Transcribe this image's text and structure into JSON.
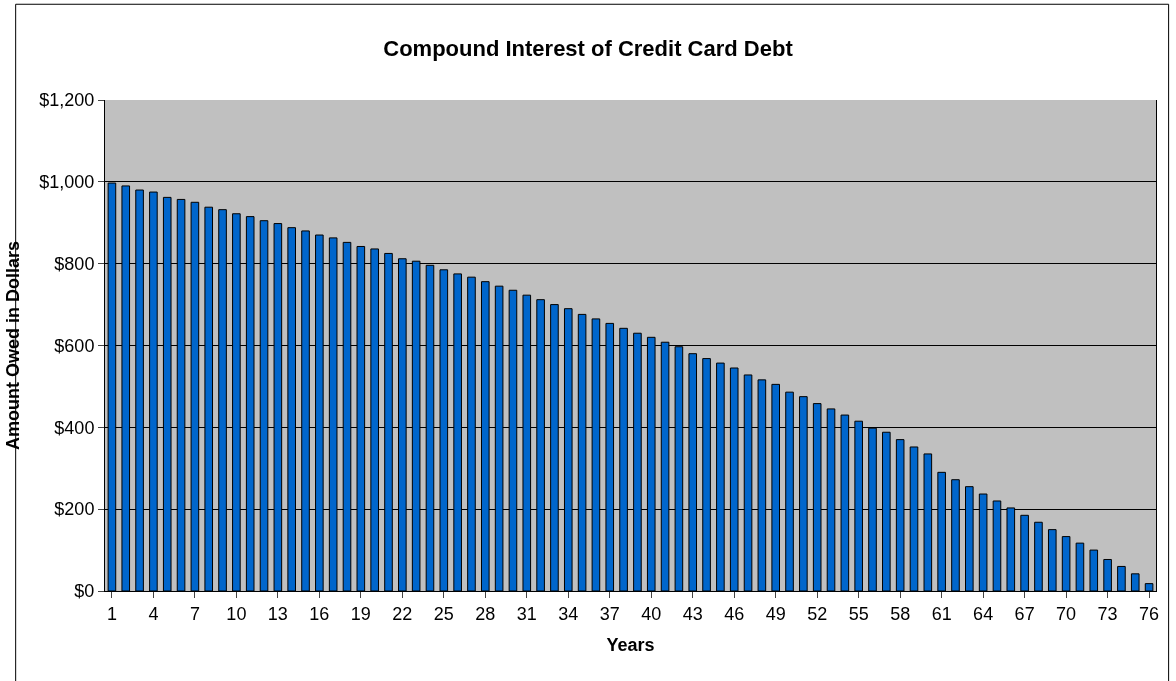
{
  "chart_data": {
    "type": "bar",
    "title": "Compound Interest of Credit Card Debt",
    "xlabel": "Years",
    "ylabel": "Amount Owed in Dollars",
    "categories": [
      "1",
      null,
      null,
      "4",
      null,
      null,
      "7",
      null,
      null,
      "10",
      null,
      null,
      "13",
      null,
      null,
      "16",
      null,
      null,
      "19",
      null,
      null,
      "22",
      null,
      null,
      "25",
      null,
      null,
      "28",
      null,
      null,
      "31",
      null,
      null,
      "34",
      null,
      null,
      "37",
      null,
      null,
      "40",
      null,
      null,
      "43",
      null,
      null,
      "46",
      null,
      null,
      "49",
      null,
      null,
      "52",
      null,
      null,
      "55",
      null,
      null,
      "58",
      null,
      null,
      "61",
      null,
      null,
      "64",
      null,
      null,
      "67",
      null,
      null,
      "70",
      null,
      null,
      "73",
      null,
      null,
      "76"
    ],
    "values": [
      997,
      990,
      980,
      975,
      962,
      957,
      950,
      938,
      932,
      922,
      915,
      905,
      898,
      888,
      880,
      870,
      863,
      852,
      842,
      836,
      825,
      812,
      806,
      796,
      785,
      775,
      767,
      756,
      745,
      735,
      723,
      712,
      700,
      690,
      676,
      665,
      654,
      642,
      630,
      620,
      608,
      597,
      580,
      568,
      557,
      545,
      528,
      516,
      505,
      486,
      475,
      458,
      445,
      430,
      415,
      398,
      388,
      370,
      352,
      335,
      290,
      272,
      255,
      237,
      220,
      203,
      185,
      168,
      150,
      133,
      117,
      100,
      77,
      60,
      42,
      18
    ],
    "color": "#0066cc",
    "ylim": [
      0,
      1200
    ],
    "yticks": [
      {
        "value": 0,
        "label": "$0"
      },
      {
        "value": 200,
        "label": "$200"
      },
      {
        "value": 400,
        "label": "$400"
      },
      {
        "value": 600,
        "label": "$600"
      },
      {
        "value": 800,
        "label": "$800"
      },
      {
        "value": 1000,
        "label": "$1,000"
      },
      {
        "value": 1200,
        "label": "$1,200"
      }
    ],
    "grid": "y",
    "legend": false
  }
}
